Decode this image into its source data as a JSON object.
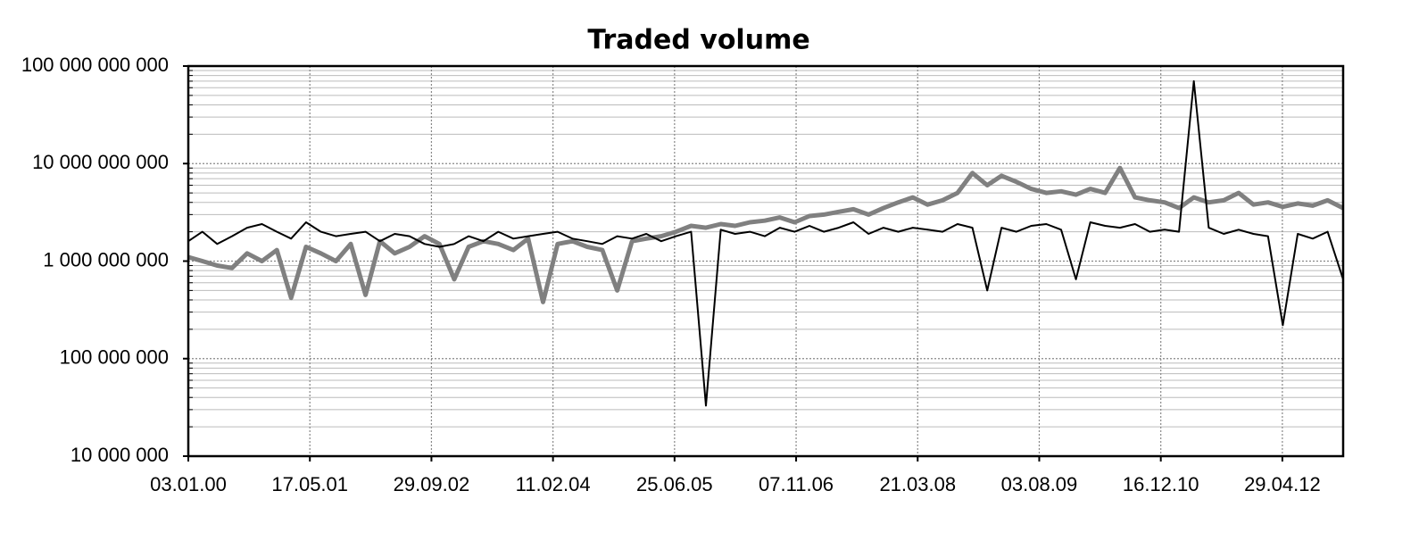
{
  "chart_data": {
    "type": "line",
    "title": "Traded volume",
    "x": [
      "03.01.00",
      "01.03.00",
      "01.05.00",
      "01.07.00",
      "01.09.00",
      "01.11.00",
      "01.01.01",
      "01.03.01",
      "01.05.01",
      "01.07.01",
      "01.09.01",
      "01.11.01",
      "01.01.02",
      "01.03.02",
      "01.05.02",
      "01.07.02",
      "01.09.02",
      "01.11.02",
      "01.01.03",
      "01.03.03",
      "01.05.03",
      "01.07.03",
      "01.09.03",
      "01.11.03",
      "01.01.04",
      "01.03.04",
      "01.05.04",
      "01.07.04",
      "01.09.04",
      "01.11.04",
      "01.01.05",
      "01.03.05",
      "01.05.05",
      "01.07.05",
      "01.09.05",
      "01.11.05",
      "01.01.06",
      "01.03.06",
      "01.05.06",
      "01.07.06",
      "01.09.06",
      "01.11.06",
      "01.01.07",
      "01.03.07",
      "01.05.07",
      "01.07.07",
      "01.09.07",
      "01.11.07",
      "01.01.08",
      "01.03.08",
      "01.05.08",
      "01.07.08",
      "01.09.08",
      "01.11.08",
      "01.01.09",
      "01.03.09",
      "01.05.09",
      "01.07.09",
      "01.09.09",
      "01.11.09",
      "01.01.10",
      "01.03.10",
      "01.05.10",
      "01.07.10",
      "01.09.10",
      "01.11.10",
      "01.01.11",
      "01.03.11",
      "01.05.11",
      "01.07.11",
      "01.09.11",
      "01.11.11",
      "01.01.12",
      "01.03.12",
      "01.05.12",
      "01.07.12",
      "01.09.12",
      "01.11.12",
      "04.01.13"
    ],
    "series": [
      {
        "color": "#000000",
        "values": [
          1600000000.0,
          2000000000.0,
          1500000000.0,
          1800000000.0,
          2200000000.0,
          2400000000.0,
          2000000000.0,
          1700000000.0,
          2500000000.0,
          2000000000.0,
          1800000000.0,
          1900000000.0,
          2000000000.0,
          1600000000.0,
          1900000000.0,
          1800000000.0,
          1500000000.0,
          1400000000.0,
          1500000000.0,
          1800000000.0,
          1600000000.0,
          2000000000.0,
          1700000000.0,
          1800000000.0,
          1900000000.0,
          2000000000.0,
          1700000000.0,
          1600000000.0,
          1500000000.0,
          1800000000.0,
          1700000000.0,
          1900000000.0,
          1600000000.0,
          1800000000.0,
          2000000000.0,
          33000000.0,
          2100000000.0,
          1900000000.0,
          2000000000.0,
          1800000000.0,
          2200000000.0,
          2000000000.0,
          2300000000.0,
          2000000000.0,
          2200000000.0,
          2500000000.0,
          1900000000.0,
          2200000000.0,
          2000000000.0,
          2200000000.0,
          2100000000.0,
          2000000000.0,
          2400000000.0,
          2200000000.0,
          500000000.0,
          2200000000.0,
          2000000000.0,
          2300000000.0,
          2400000000.0,
          2100000000.0,
          650000000.0,
          2500000000.0,
          2300000000.0,
          2200000000.0,
          2400000000.0,
          2000000000.0,
          2100000000.0,
          2000000000.0,
          70000000000.0,
          2200000000.0,
          1900000000.0,
          2100000000.0,
          1900000000.0,
          1800000000.0,
          220000000.0,
          1900000000.0,
          1700000000.0,
          2000000000.0,
          650000000.0
        ]
      },
      {
        "color": "#808080",
        "values": [
          1100000000.0,
          1000000000.0,
          900000000.0,
          850000000.0,
          1200000000.0,
          1000000000.0,
          1300000000.0,
          420000000.0,
          1400000000.0,
          1200000000.0,
          1000000000.0,
          1500000000.0,
          450000000.0,
          1600000000.0,
          1200000000.0,
          1400000000.0,
          1800000000.0,
          1500000000.0,
          650000000.0,
          1400000000.0,
          1600000000.0,
          1500000000.0,
          1300000000.0,
          1700000000.0,
          380000000.0,
          1500000000.0,
          1600000000.0,
          1400000000.0,
          1300000000.0,
          500000000.0,
          1600000000.0,
          1700000000.0,
          1800000000.0,
          2000000000.0,
          2300000000.0,
          2200000000.0,
          2400000000.0,
          2300000000.0,
          2500000000.0,
          2600000000.0,
          2800000000.0,
          2500000000.0,
          2900000000.0,
          3000000000.0,
          3200000000.0,
          3400000000.0,
          3000000000.0,
          3500000000.0,
          4000000000.0,
          4500000000.0,
          3800000000.0,
          4200000000.0,
          5000000000.0,
          8000000000.0,
          6000000000.0,
          7500000000.0,
          6500000000.0,
          5500000000.0,
          5000000000.0,
          5200000000.0,
          4800000000.0,
          5500000000.0,
          5000000000.0,
          9000000000.0,
          4500000000.0,
          4200000000.0,
          4000000000.0,
          3500000000.0,
          4500000000.0,
          4000000000.0,
          4200000000.0,
          5000000000.0,
          3800000000.0,
          4000000000.0,
          3600000000.0,
          3900000000.0,
          3700000000.0,
          4200000000.0,
          3500000000.0
        ]
      }
    ],
    "xlim": [
      "03.01.00",
      "04.01.13"
    ],
    "xticks": [
      "03.01.00",
      "17.05.01",
      "29.09.02",
      "11.02.04",
      "25.06.05",
      "07.11.06",
      "21.03.08",
      "03.08.09",
      "16.12.10",
      "29.04.12"
    ],
    "ylim": [
      10000000.0,
      100000000000.0
    ],
    "log_y": true,
    "grid": true,
    "yticks": [
      {
        "value": 10000000.0,
        "label": "10 000 000"
      },
      {
        "value": 100000000.0,
        "label": "100 000 000"
      },
      {
        "value": 1000000000.0,
        "label": "1 000 000 000"
      },
      {
        "value": 10000000000.0,
        "label": "10 000 000 000"
      },
      {
        "value": 100000000000.0,
        "label": "100 000 000 000"
      }
    ]
  }
}
